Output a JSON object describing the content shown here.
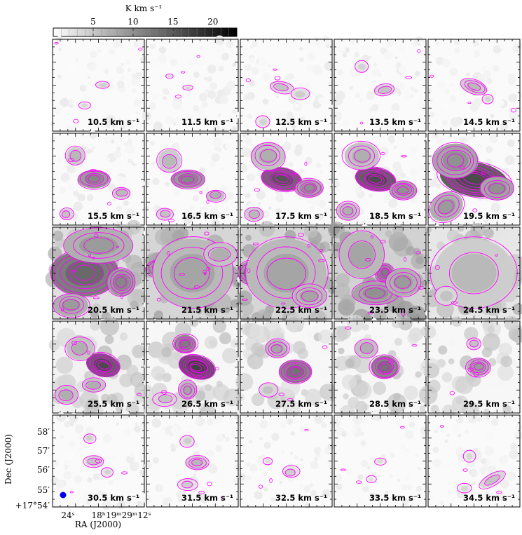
{
  "chart_data": {
    "type": "heatmap",
    "subtype": "channel-map grid (5x5) with contours",
    "colorbar": {
      "label": "K km s⁻¹",
      "ticks": [
        5,
        10,
        15,
        20
      ],
      "range": [
        0,
        23
      ],
      "colormap": "gray_r"
    },
    "panel_labels": [
      "10.5 km s⁻¹",
      "11.5 km s⁻¹",
      "12.5 km s⁻¹",
      "13.5 km s⁻¹",
      "14.5 km s⁻¹",
      "15.5 km s⁻¹",
      "16.5 km s⁻¹",
      "17.5 km s⁻¹",
      "18.5 km s⁻¹",
      "19.5 km s⁻¹",
      "20.5 km s⁻¹",
      "21.5 km s⁻¹",
      "22.5 km s⁻¹",
      "23.5 km s⁻¹",
      "24.5 km s⁻¹",
      "25.5 km s⁻¹",
      "26.5 km s⁻¹",
      "27.5 km s⁻¹",
      "28.5 km s⁻¹",
      "29.5 km s⁻¹",
      "30.5 km s⁻¹",
      "31.5 km s⁻¹",
      "32.5 km s⁻¹",
      "33.5 km s⁻¹",
      "34.5 km s⁻¹"
    ],
    "velocities": [
      10.5,
      11.5,
      12.5,
      13.5,
      14.5,
      15.5,
      16.5,
      17.5,
      18.5,
      19.5,
      20.5,
      21.5,
      22.5,
      23.5,
      24.5,
      25.5,
      26.5,
      27.5,
      28.5,
      29.5,
      30.5,
      31.5,
      32.5,
      33.5,
      34.5
    ],
    "xlabel": "RA (J2000)",
    "ylabel": "Dec (J2000)",
    "x_ticks": [
      "24ˢ",
      "18ʰ19ᵐ29ᵐ12ˢ"
    ],
    "y_ticks": [
      "+17°54′",
      "55′",
      "56′",
      "57′",
      "58′"
    ],
    "contour_color": "#ff00ff",
    "beam_color": "#0000ee"
  }
}
